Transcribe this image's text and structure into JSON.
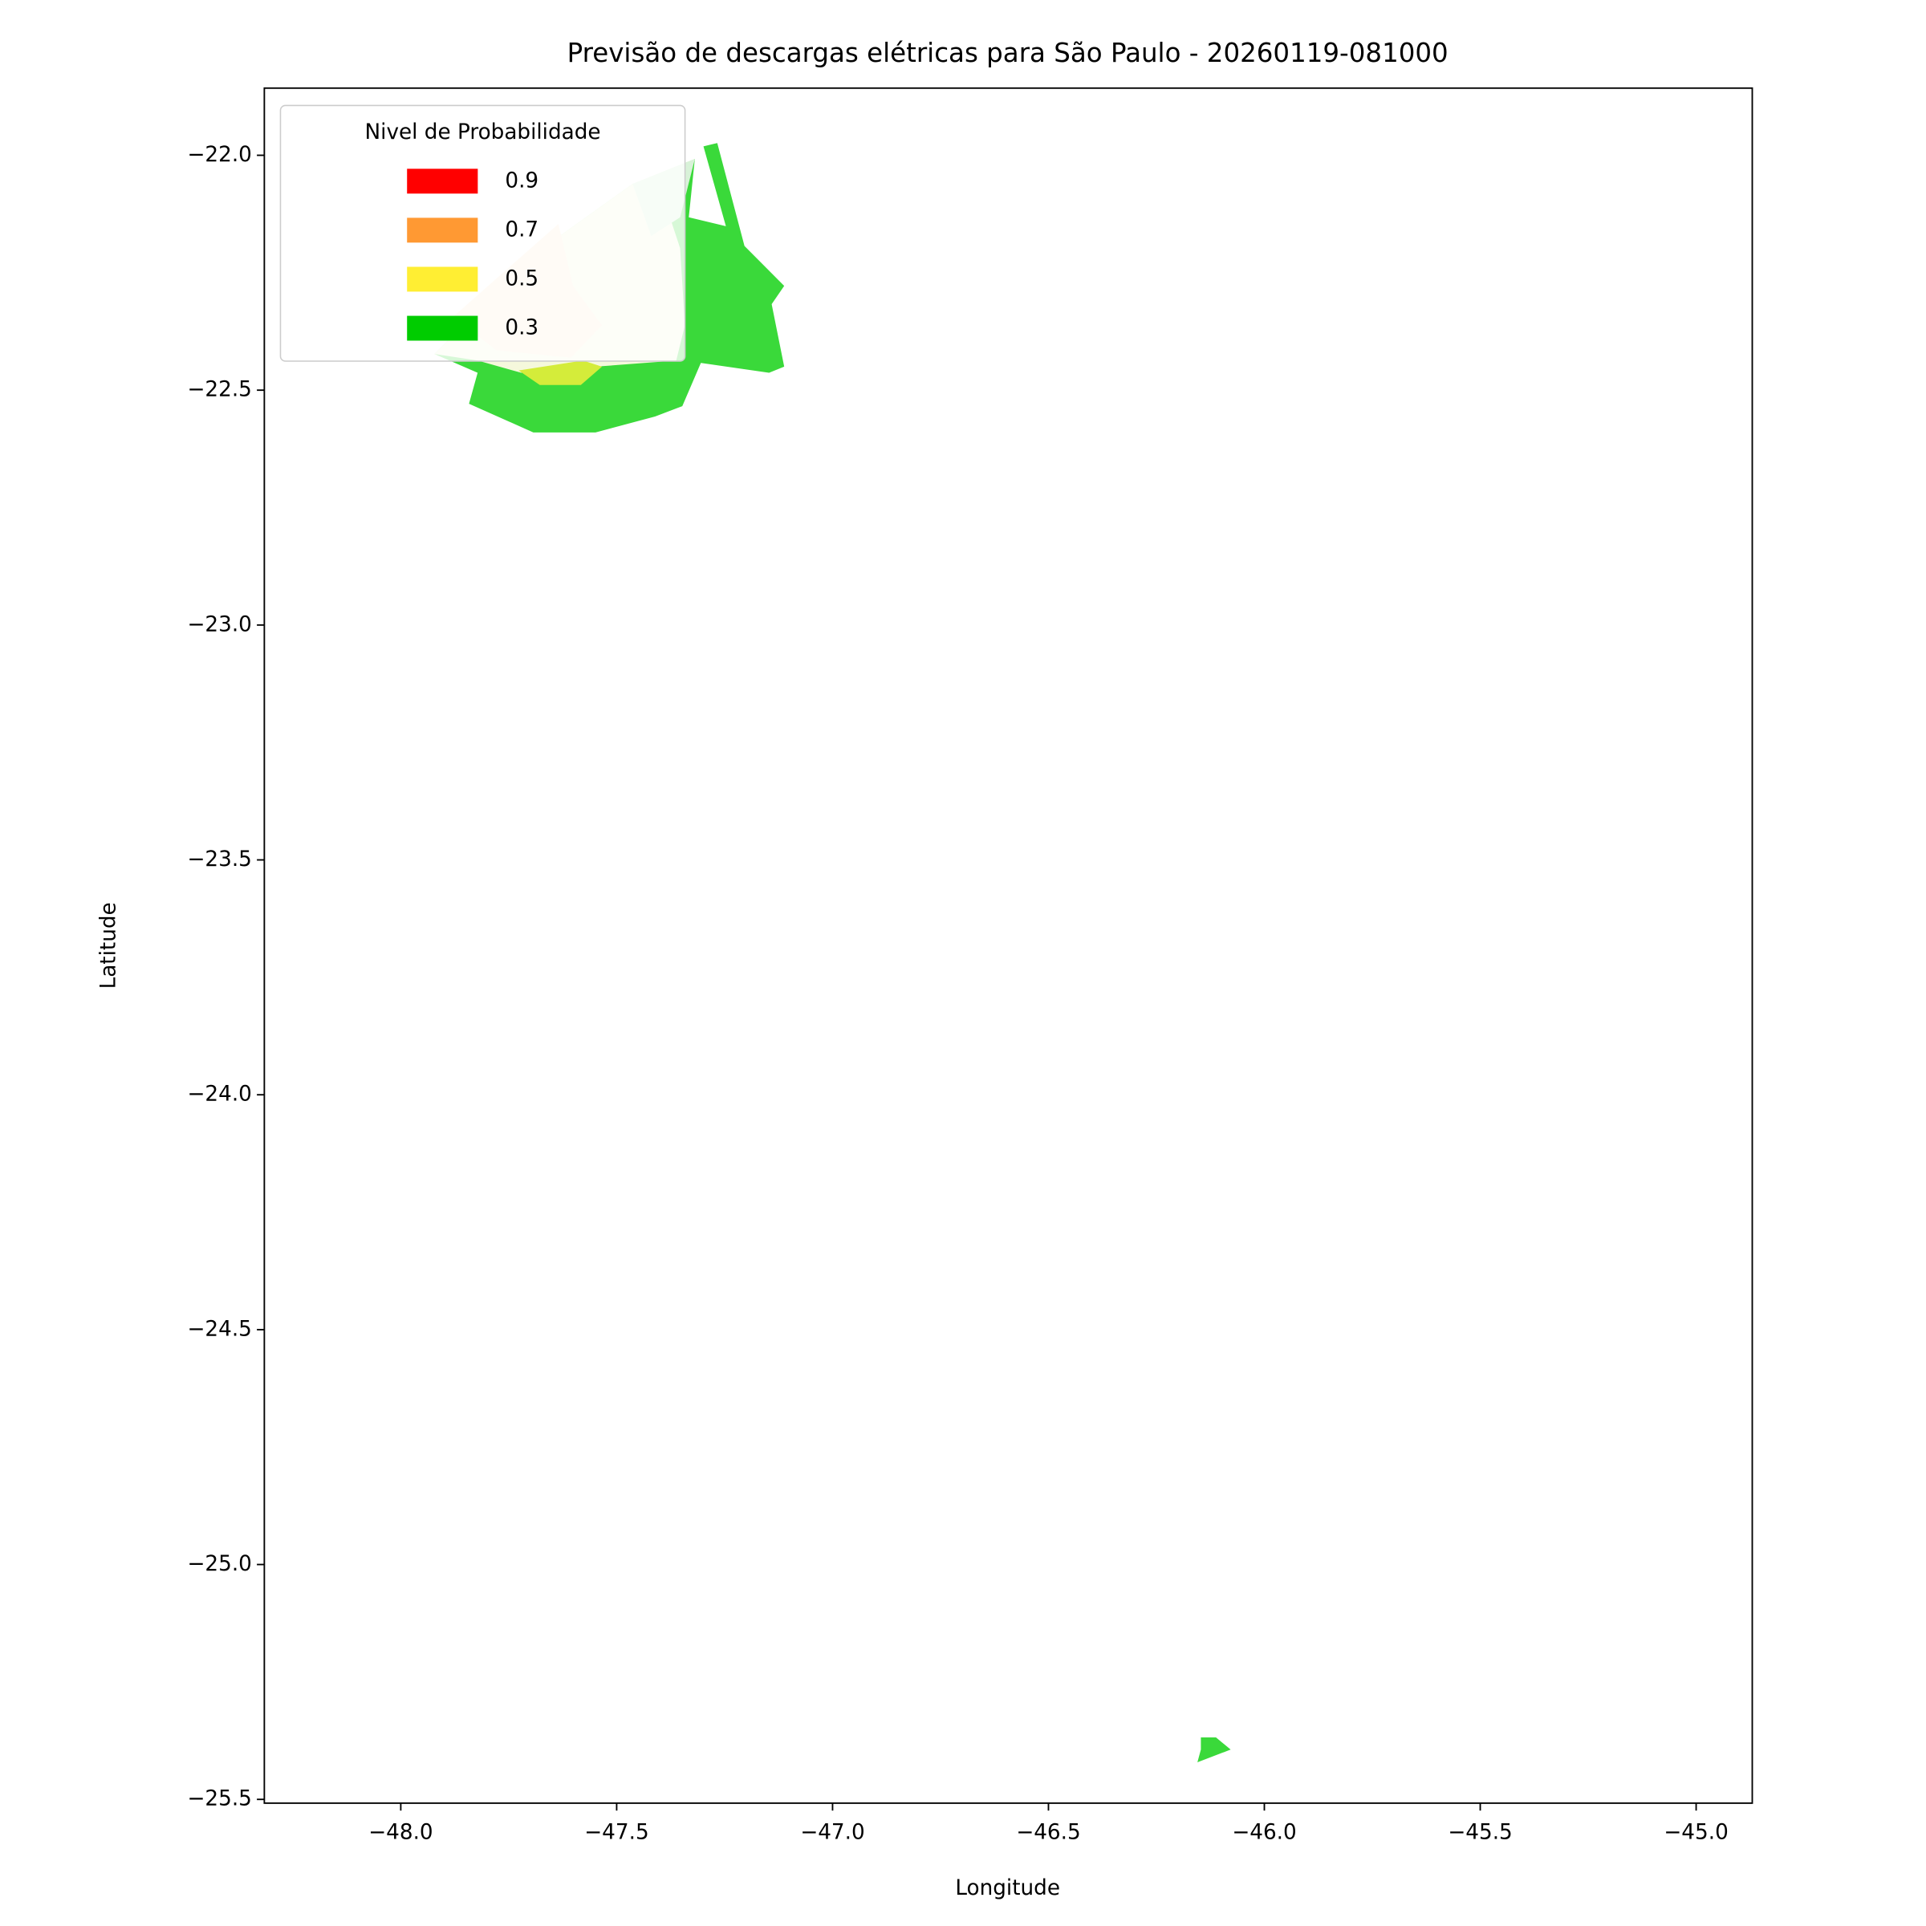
{
  "chart_data": {
    "type": "contour",
    "title": "Previsão de descargas elétricas para São Paulo - 20260119-081000",
    "x_label": "Longitude",
    "y_label": "Latitude",
    "xlim": [
      -48.316,
      -44.87
    ],
    "ylim": [
      -25.508,
      -21.857
    ],
    "xticks": [
      {
        "value": -48.0,
        "label": "−48.0"
      },
      {
        "value": -47.5,
        "label": "−47.5"
      },
      {
        "value": -47.0,
        "label": "−47.0"
      },
      {
        "value": -46.5,
        "label": "−46.5"
      },
      {
        "value": -46.0,
        "label": "−46.0"
      },
      {
        "value": -45.5,
        "label": "−45.5"
      },
      {
        "value": -45.0,
        "label": "−45.0"
      }
    ],
    "yticks": [
      {
        "value": -22.0,
        "label": "−22.0"
      },
      {
        "value": -22.5,
        "label": "−22.5"
      },
      {
        "value": -23.0,
        "label": "−23.0"
      },
      {
        "value": -23.5,
        "label": "−23.5"
      },
      {
        "value": -24.0,
        "label": "−24.0"
      },
      {
        "value": -24.5,
        "label": "−24.5"
      },
      {
        "value": -25.0,
        "label": "−25.0"
      },
      {
        "value": -25.5,
        "label": "−25.5"
      }
    ],
    "legend": {
      "title": "Nivel de Probabilidade",
      "position": "upper left",
      "entries": [
        {
          "label": "0.9",
          "color": "#ff0000"
        },
        {
          "label": "0.7",
          "color": "#ff9933"
        },
        {
          "label": "0.5",
          "color": "#ffee33"
        },
        {
          "label": "0.3",
          "color": "#00cc00"
        }
      ]
    },
    "regions": [
      {
        "color": "#3ad93a",
        "x": [
          -47.299,
          -47.267,
          -47.204,
          -47.112,
          -47.141,
          -47.112,
          -47.147,
          -47.305,
          -47.348,
          -47.411,
          -47.549,
          -47.693,
          -47.842,
          -47.822,
          -47.922,
          -47.693,
          -47.463,
          -47.319,
          -47.333,
          -47.247
        ],
        "y": [
          -21.981,
          -21.974,
          -22.193,
          -22.278,
          -22.317,
          -22.45,
          -22.463,
          -22.442,
          -22.534,
          -22.556,
          -22.59,
          -22.59,
          -22.529,
          -22.463,
          -22.423,
          -22.212,
          -22.061,
          -22.008,
          -22.132,
          -22.151
        ]
      },
      {
        "color": "#f5f8dc",
        "x": [
          -47.922,
          -47.693,
          -47.463,
          -47.319,
          -47.405,
          -47.353,
          -47.342,
          -47.362,
          -47.549,
          -47.721,
          -47.822
        ],
        "y": [
          -22.423,
          -22.212,
          -22.061,
          -22.008,
          -22.053,
          -22.198,
          -22.362,
          -22.437,
          -22.45,
          -22.463,
          -22.437
        ]
      },
      {
        "color": "#d8f2d8",
        "x": [
          -47.463,
          -47.319,
          -47.353,
          -47.42
        ],
        "y": [
          -22.061,
          -22.008,
          -22.132,
          -22.172
        ]
      },
      {
        "color": "#fde9d3",
        "x": [
          -47.879,
          -47.635,
          -47.601,
          -47.534,
          -47.606,
          -47.779
        ],
        "y": [
          -22.344,
          -22.146,
          -22.278,
          -22.362,
          -22.431,
          -22.415
        ]
      },
      {
        "color": "#d4ec3a",
        "x": [
          -47.727,
          -47.578,
          -47.534,
          -47.583,
          -47.678
        ],
        "y": [
          -22.458,
          -22.437,
          -22.45,
          -22.489,
          -22.489
        ]
      },
      {
        "color": "#3ad93a",
        "x": [
          -46.147,
          -46.112,
          -46.078,
          -46.155,
          -46.147
        ],
        "y": [
          -25.368,
          -25.368,
          -25.394,
          -25.421,
          -25.394
        ]
      }
    ]
  }
}
